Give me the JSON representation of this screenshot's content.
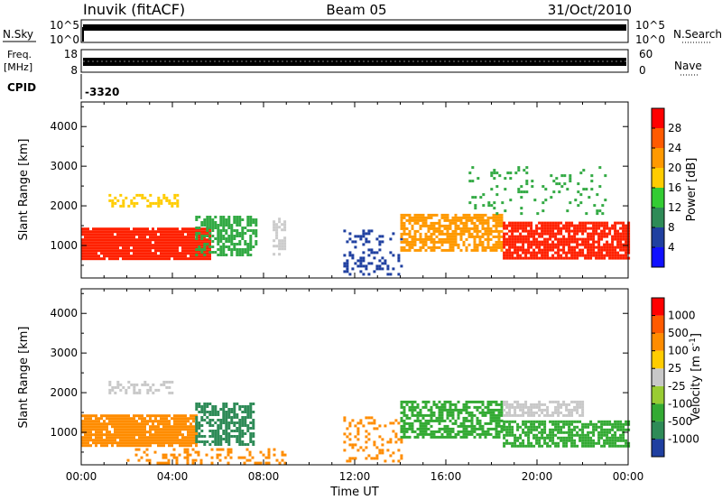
{
  "header": {
    "station": "Inuvik (fitACF)",
    "beam": "Beam 05",
    "date": "31/Oct/2010"
  },
  "status_panels": {
    "nsky_label": "N.Sky",
    "nsky_ticks": [
      "10^5",
      "10^0"
    ],
    "nsearch_label": "N.Search",
    "nsearch_ticks": [
      "10^5",
      "10^0"
    ],
    "freq_label": "Freq.",
    "freq_unit": "[MHz]",
    "freq_ticks": [
      "18",
      "8"
    ],
    "nave_label": "Nave",
    "nave_ticks": [
      "60",
      "0"
    ],
    "cpid_label": "CPID",
    "cpid_value": "-3320"
  },
  "chart_data": [
    {
      "type": "heatmap",
      "title": "",
      "quantity": "Power",
      "xlabel": "",
      "ylabel": "Slant Range [km]",
      "xlim": [
        0,
        24
      ],
      "ylim": [
        180,
        4620
      ],
      "x_tick_labels": [
        "00:00",
        "04:00",
        "08:00",
        "12:00",
        "16:00",
        "20:00",
        "00:00"
      ],
      "y_ticks": [
        1000,
        2000,
        3000,
        4000
      ],
      "y_tick_labels": [
        "1000",
        "2000",
        "3000",
        "4000"
      ],
      "colorbar": {
        "label": "Power [dB]",
        "tick_labels": [
          "4",
          "8",
          "12",
          "16",
          "20",
          "24",
          "28"
        ],
        "colors": [
          "#1010ff",
          "#2040a0",
          "#2e8b57",
          "#33cc33",
          "#ffcc00",
          "#ff9900",
          "#ff5a00",
          "#ff0000"
        ]
      },
      "regions": [
        {
          "x0": 0.0,
          "x1": 5.6,
          "y0": 650,
          "y1": 1450,
          "color": "#ff2000",
          "density": 0.95
        },
        {
          "x0": 5.0,
          "x1": 7.7,
          "y0": 750,
          "y1": 1750,
          "color": "#33aa44",
          "density": 0.6
        },
        {
          "x0": 1.2,
          "x1": 4.2,
          "y0": 2000,
          "y1": 2300,
          "color": "#ffcc00",
          "density": 0.45
        },
        {
          "x0": 8.4,
          "x1": 8.9,
          "y0": 750,
          "y1": 1700,
          "color": "#cccccc",
          "density": 0.5
        },
        {
          "x0": 11.5,
          "x1": 14.0,
          "y0": 250,
          "y1": 1400,
          "color": "#1f3fa0",
          "density": 0.25
        },
        {
          "x0": 14.0,
          "x1": 18.5,
          "y0": 900,
          "y1": 1800,
          "color": "#ff9900",
          "density": 0.7
        },
        {
          "x0": 18.5,
          "x1": 24.0,
          "y0": 650,
          "y1": 1600,
          "color": "#ff2000",
          "density": 0.85
        },
        {
          "x0": 17.0,
          "x1": 23.0,
          "y0": 1800,
          "y1": 3000,
          "color": "#33aa44",
          "density": 0.12
        }
      ]
    },
    {
      "type": "heatmap",
      "title": "",
      "quantity": "Velocity",
      "xlabel": "Time UT",
      "ylabel": "Slant Range [km]",
      "xlim": [
        0,
        24
      ],
      "ylim": [
        180,
        4620
      ],
      "x_tick_labels": [
        "00:00",
        "04:00",
        "08:00",
        "12:00",
        "16:00",
        "20:00",
        "00:00"
      ],
      "y_ticks": [
        1000,
        2000,
        3000,
        4000
      ],
      "y_tick_labels": [
        "1000",
        "2000",
        "3000",
        "4000"
      ],
      "colorbar": {
        "label": "Velocity [m s^-1]",
        "tick_labels": [
          "1000",
          "500",
          "100",
          "25",
          "-25",
          "-100",
          "-500",
          "-1000"
        ],
        "colors": [
          "#1f3fa0",
          "#2e8b57",
          "#33aa33",
          "#99cc33",
          "#c8c8c8",
          "#ffcc00",
          "#ff8c00",
          "#ff5a00",
          "#ff0000"
        ]
      },
      "regions": [
        {
          "x0": 0.0,
          "x1": 5.0,
          "y0": 650,
          "y1": 1450,
          "color": "#ff8c00",
          "density": 0.9
        },
        {
          "x0": 5.0,
          "x1": 7.5,
          "y0": 700,
          "y1": 1750,
          "color": "#2e8b57",
          "density": 0.6
        },
        {
          "x0": 1.2,
          "x1": 4.0,
          "y0": 2000,
          "y1": 2300,
          "color": "#c8c8c8",
          "density": 0.45
        },
        {
          "x0": 11.5,
          "x1": 14.0,
          "y0": 250,
          "y1": 1400,
          "color": "#ff8c00",
          "density": 0.25
        },
        {
          "x0": 14.0,
          "x1": 18.5,
          "y0": 900,
          "y1": 1800,
          "color": "#33aa33",
          "density": 0.65
        },
        {
          "x0": 18.5,
          "x1": 22.0,
          "y0": 1400,
          "y1": 1800,
          "color": "#c8c8c8",
          "density": 0.6
        },
        {
          "x0": 18.5,
          "x1": 24.0,
          "y0": 650,
          "y1": 1300,
          "color": "#33aa33",
          "density": 0.75
        },
        {
          "x0": 2.0,
          "x1": 9.0,
          "y0": 250,
          "y1": 600,
          "color": "#ff8c00",
          "density": 0.3
        }
      ]
    }
  ]
}
